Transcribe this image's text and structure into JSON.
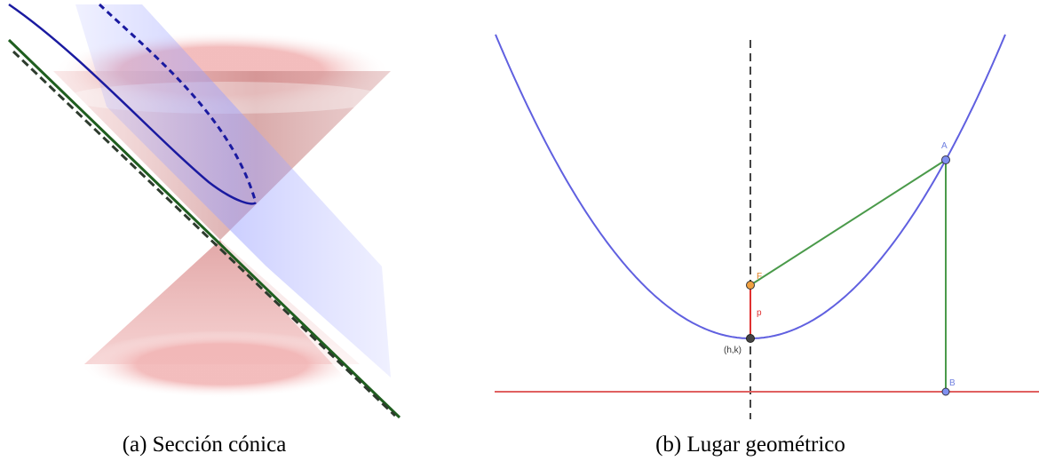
{
  "figure": {
    "panel_a": {
      "caption": "(a) Sección cónica"
    },
    "panel_b": {
      "caption": "(b) Lugar geométrico",
      "labels": {
        "focus": "F",
        "point_a": "A",
        "point_b": "B",
        "distance": "p",
        "vertex": "(h,k)"
      }
    }
  }
}
